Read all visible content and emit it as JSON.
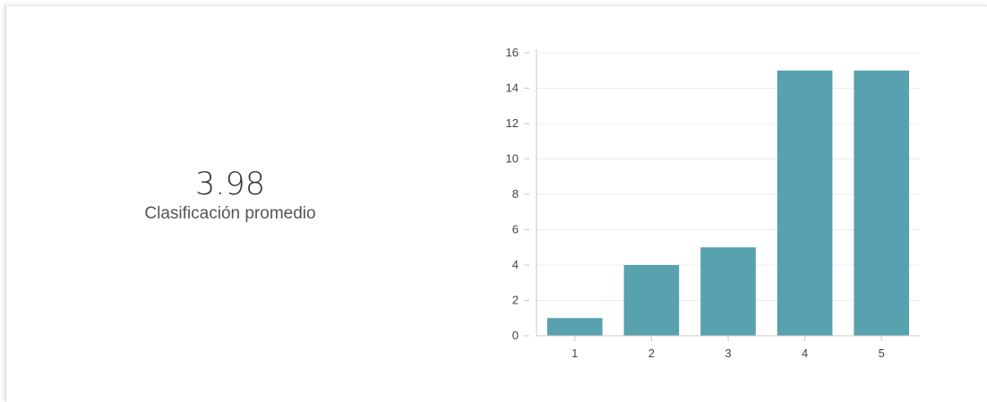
{
  "summary": {
    "average_value": "3.98",
    "average_label": "Clasificación promedio"
  },
  "chart_data": {
    "type": "bar",
    "categories": [
      "1",
      "2",
      "3",
      "4",
      "5"
    ],
    "values": [
      1,
      4,
      5,
      15,
      15
    ],
    "y_ticks": [
      "0",
      "2",
      "4",
      "6",
      "8",
      "10",
      "12",
      "14",
      "16"
    ],
    "ylim": [
      0,
      16
    ],
    "grid": true,
    "bar_color": "#57a2ae",
    "grid_color": "#ececec",
    "axis_color": "#c8c8c8",
    "title": "",
    "xlabel": "",
    "ylabel": ""
  }
}
